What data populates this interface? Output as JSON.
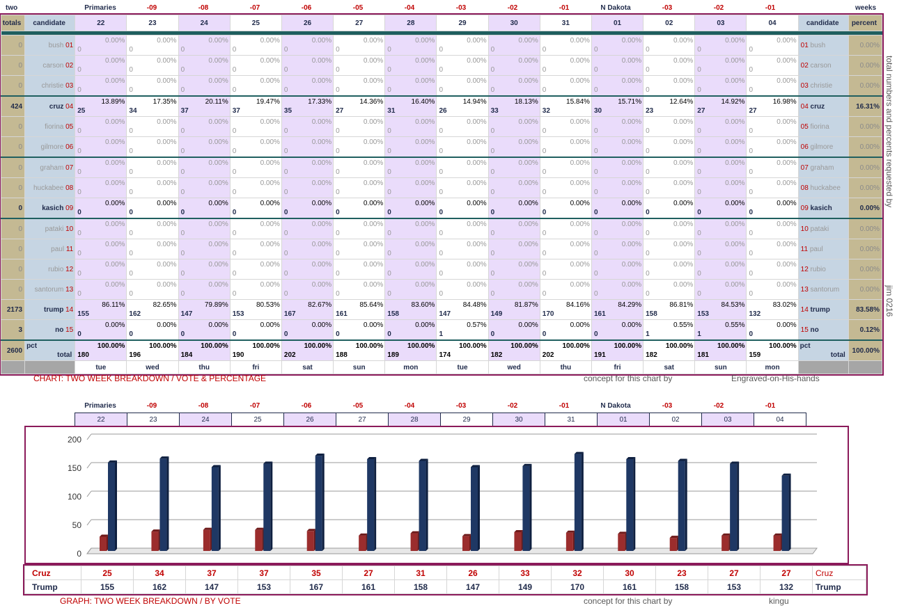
{
  "top": {
    "left_label": "two",
    "right_label": "weeks",
    "col_headers": [
      "Primaries",
      "-09",
      "-08",
      "-07",
      "-06",
      "-05",
      "-04",
      "-03",
      "-02",
      "-01",
      "N Dakota",
      "-03",
      "-02",
      "-01"
    ],
    "col_header_colors": [
      "#1f2a4a",
      "#c00000",
      "#c00000",
      "#c00000",
      "#c00000",
      "#c00000",
      "#c00000",
      "#c00000",
      "#c00000",
      "#c00000",
      "#1f2a4a",
      "#c00000",
      "#c00000",
      "#c00000"
    ]
  },
  "table": {
    "h_totals": "totals",
    "h_candidate": "candidate",
    "h_percent": "percent",
    "dates": [
      "22",
      "23",
      "24",
      "25",
      "26",
      "27",
      "28",
      "29",
      "30",
      "31",
      "01",
      "02",
      "03",
      "04"
    ],
    "days": [
      "tue",
      "wed",
      "thu",
      "fri",
      "sat",
      "sun",
      "mon",
      "tue",
      "wed",
      "thu",
      "fri",
      "sat",
      "sun",
      "mon"
    ],
    "candidates": [
      {
        "name": "bush",
        "num": "01",
        "total": "0",
        "pct": "0.00%",
        "vals": [
          "0",
          "0",
          "0",
          "0",
          "0",
          "0",
          "0",
          "0",
          "0",
          "0",
          "0",
          "0",
          "0",
          "0"
        ],
        "pcts": [
          "0.00%",
          "0.00%",
          "0.00%",
          "0.00%",
          "0.00%",
          "0.00%",
          "0.00%",
          "0.00%",
          "0.00%",
          "0.00%",
          "0.00%",
          "0.00%",
          "0.00%",
          "0.00%"
        ],
        "bold": false
      },
      {
        "name": "carson",
        "num": "02",
        "total": "0",
        "pct": "0.00%",
        "vals": [
          "0",
          "0",
          "0",
          "0",
          "0",
          "0",
          "0",
          "0",
          "0",
          "0",
          "0",
          "0",
          "0",
          "0"
        ],
        "pcts": [
          "0.00%",
          "0.00%",
          "0.00%",
          "0.00%",
          "0.00%",
          "0.00%",
          "0.00%",
          "0.00%",
          "0.00%",
          "0.00%",
          "0.00%",
          "0.00%",
          "0.00%",
          "0.00%"
        ],
        "bold": false
      },
      {
        "name": "christie",
        "num": "03",
        "total": "0",
        "pct": "0.00%",
        "vals": [
          "0",
          "0",
          "0",
          "0",
          "0",
          "0",
          "0",
          "0",
          "0",
          "0",
          "0",
          "0",
          "0",
          "0"
        ],
        "pcts": [
          "0.00%",
          "0.00%",
          "0.00%",
          "0.00%",
          "0.00%",
          "0.00%",
          "0.00%",
          "0.00%",
          "0.00%",
          "0.00%",
          "0.00%",
          "0.00%",
          "0.00%",
          "0.00%"
        ],
        "bold": false
      },
      {
        "name": "cruz",
        "num": "04",
        "total": "424",
        "pct": "16.31%",
        "vals": [
          "25",
          "34",
          "37",
          "37",
          "35",
          "27",
          "31",
          "26",
          "33",
          "32",
          "30",
          "23",
          "27",
          "27"
        ],
        "pcts": [
          "13.89%",
          "17.35%",
          "20.11%",
          "19.47%",
          "17.33%",
          "14.36%",
          "16.40%",
          "14.94%",
          "18.13%",
          "15.84%",
          "15.71%",
          "12.64%",
          "14.92%",
          "16.98%"
        ],
        "bold": true
      },
      {
        "name": "fiorina",
        "num": "05",
        "total": "0",
        "pct": "0.00%",
        "vals": [
          "0",
          "0",
          "0",
          "0",
          "0",
          "0",
          "0",
          "0",
          "0",
          "0",
          "0",
          "0",
          "0",
          "0"
        ],
        "pcts": [
          "0.00%",
          "0.00%",
          "0.00%",
          "0.00%",
          "0.00%",
          "0.00%",
          "0.00%",
          "0.00%",
          "0.00%",
          "0.00%",
          "0.00%",
          "0.00%",
          "0.00%",
          "0.00%"
        ],
        "bold": false
      },
      {
        "name": "gilmore",
        "num": "06",
        "total": "0",
        "pct": "0.00%",
        "vals": [
          "0",
          "0",
          "0",
          "0",
          "0",
          "0",
          "0",
          "0",
          "0",
          "0",
          "0",
          "0",
          "0",
          "0"
        ],
        "pcts": [
          "0.00%",
          "0.00%",
          "0.00%",
          "0.00%",
          "0.00%",
          "0.00%",
          "0.00%",
          "0.00%",
          "0.00%",
          "0.00%",
          "0.00%",
          "0.00%",
          "0.00%",
          "0.00%"
        ],
        "bold": false
      },
      {
        "name": "graham",
        "num": "07",
        "total": "0",
        "pct": "0.00%",
        "vals": [
          "0",
          "0",
          "0",
          "0",
          "0",
          "0",
          "0",
          "0",
          "0",
          "0",
          "0",
          "0",
          "0",
          "0"
        ],
        "pcts": [
          "0.00%",
          "0.00%",
          "0.00%",
          "0.00%",
          "0.00%",
          "0.00%",
          "0.00%",
          "0.00%",
          "0.00%",
          "0.00%",
          "0.00%",
          "0.00%",
          "0.00%",
          "0.00%"
        ],
        "bold": false
      },
      {
        "name": "huckabee",
        "num": "08",
        "total": "0",
        "pct": "0.00%",
        "vals": [
          "0",
          "0",
          "0",
          "0",
          "0",
          "0",
          "0",
          "0",
          "0",
          "0",
          "0",
          "0",
          "0",
          "0"
        ],
        "pcts": [
          "0.00%",
          "0.00%",
          "0.00%",
          "0.00%",
          "0.00%",
          "0.00%",
          "0.00%",
          "0.00%",
          "0.00%",
          "0.00%",
          "0.00%",
          "0.00%",
          "0.00%",
          "0.00%"
        ],
        "bold": false
      },
      {
        "name": "kasich",
        "num": "09",
        "total": "0",
        "pct": "0.00%",
        "vals": [
          "0",
          "0",
          "0",
          "0",
          "0",
          "0",
          "0",
          "0",
          "0",
          "0",
          "0",
          "0",
          "0",
          "0"
        ],
        "pcts": [
          "0.00%",
          "0.00%",
          "0.00%",
          "0.00%",
          "0.00%",
          "0.00%",
          "0.00%",
          "0.00%",
          "0.00%",
          "0.00%",
          "0.00%",
          "0.00%",
          "0.00%",
          "0.00%"
        ],
        "bold": true
      },
      {
        "name": "pataki",
        "num": "10",
        "total": "0",
        "pct": "0.00%",
        "vals": [
          "0",
          "0",
          "0",
          "0",
          "0",
          "0",
          "0",
          "0",
          "0",
          "0",
          "0",
          "0",
          "0",
          "0"
        ],
        "pcts": [
          "0.00%",
          "0.00%",
          "0.00%",
          "0.00%",
          "0.00%",
          "0.00%",
          "0.00%",
          "0.00%",
          "0.00%",
          "0.00%",
          "0.00%",
          "0.00%",
          "0.00%",
          "0.00%"
        ],
        "bold": false
      },
      {
        "name": "paul",
        "num": "11",
        "total": "0",
        "pct": "0.00%",
        "vals": [
          "0",
          "0",
          "0",
          "0",
          "0",
          "0",
          "0",
          "0",
          "0",
          "0",
          "0",
          "0",
          "0",
          "0"
        ],
        "pcts": [
          "0.00%",
          "0.00%",
          "0.00%",
          "0.00%",
          "0.00%",
          "0.00%",
          "0.00%",
          "0.00%",
          "0.00%",
          "0.00%",
          "0.00%",
          "0.00%",
          "0.00%",
          "0.00%"
        ],
        "bold": false
      },
      {
        "name": "rubio",
        "num": "12",
        "total": "0",
        "pct": "0.00%",
        "vals": [
          "0",
          "0",
          "0",
          "0",
          "0",
          "0",
          "0",
          "0",
          "0",
          "0",
          "0",
          "0",
          "0",
          "0"
        ],
        "pcts": [
          "0.00%",
          "0.00%",
          "0.00%",
          "0.00%",
          "0.00%",
          "0.00%",
          "0.00%",
          "0.00%",
          "0.00%",
          "0.00%",
          "0.00%",
          "0.00%",
          "0.00%",
          "0.00%"
        ],
        "bold": false
      },
      {
        "name": "santorum",
        "num": "13",
        "total": "0",
        "pct": "0.00%",
        "vals": [
          "0",
          "0",
          "0",
          "0",
          "0",
          "0",
          "0",
          "0",
          "0",
          "0",
          "0",
          "0",
          "0",
          "0"
        ],
        "pcts": [
          "0.00%",
          "0.00%",
          "0.00%",
          "0.00%",
          "0.00%",
          "0.00%",
          "0.00%",
          "0.00%",
          "0.00%",
          "0.00%",
          "0.00%",
          "0.00%",
          "0.00%",
          "0.00%"
        ],
        "bold": false
      },
      {
        "name": "trump",
        "num": "14",
        "total": "2173",
        "pct": "83.58%",
        "vals": [
          "155",
          "162",
          "147",
          "153",
          "167",
          "161",
          "158",
          "147",
          "149",
          "170",
          "161",
          "158",
          "153",
          "132"
        ],
        "pcts": [
          "86.11%",
          "82.65%",
          "79.89%",
          "80.53%",
          "82.67%",
          "85.64%",
          "83.60%",
          "84.48%",
          "81.87%",
          "84.16%",
          "84.29%",
          "86.81%",
          "84.53%",
          "83.02%"
        ],
        "bold": true
      },
      {
        "name": "no",
        "num": "15",
        "total": "3",
        "pct": "0.12%",
        "vals": [
          "0",
          "0",
          "0",
          "0",
          "0",
          "0",
          "0",
          "1",
          "0",
          "0",
          "0",
          "1",
          "1",
          "0"
        ],
        "pcts": [
          "0.00%",
          "0.00%",
          "0.00%",
          "0.00%",
          "0.00%",
          "0.00%",
          "0.00%",
          "0.57%",
          "0.00%",
          "0.00%",
          "0.00%",
          "0.55%",
          "0.55%",
          "0.00%"
        ],
        "bold": true
      }
    ],
    "total_row": {
      "total": "2600",
      "pct_label": "pct",
      "label": "total",
      "grand_pct": "100.00%",
      "vals": [
        "180",
        "196",
        "184",
        "190",
        "202",
        "188",
        "189",
        "174",
        "182",
        "202",
        "191",
        "182",
        "181",
        "159"
      ],
      "pcts": [
        "100.00%",
        "100.00%",
        "100.00%",
        "100.00%",
        "100.00%",
        "100.00%",
        "100.00%",
        "100.00%",
        "100.00%",
        "100.00%",
        "100.00%",
        "100.00%",
        "100.00%",
        "100.00%"
      ]
    }
  },
  "captions": {
    "chart_caption": "CHART: TWO WEEK BREAKDOWN / VOTE & PERCENTAGE",
    "concept1": "concept for this chart by",
    "author1": "Engraved-on-His-hands",
    "side_note": "total numbers and percents requested by",
    "side_author": "jim 0216",
    "graph_caption": "GRAPH: TWO WEEK BREAKDOWN / BY VOTE",
    "concept2": "concept for this chart by",
    "author2": "kingu"
  },
  "colors": {
    "cruz": "#9b2d2d",
    "trump": "#1f3864",
    "lavender": "#eadcfb",
    "blue_cell": "#c6d5e3",
    "tan_cell": "#c4b993"
  },
  "chart_data": {
    "type": "bar",
    "categories": [
      "22",
      "23",
      "24",
      "25",
      "26",
      "27",
      "28",
      "29",
      "30",
      "31",
      "01",
      "02",
      "03",
      "04"
    ],
    "series": [
      {
        "name": "Cruz",
        "values": [
          25,
          34,
          37,
          37,
          35,
          27,
          31,
          26,
          33,
          32,
          30,
          23,
          27,
          27
        ]
      },
      {
        "name": "Trump",
        "values": [
          155,
          162,
          147,
          153,
          167,
          161,
          158,
          147,
          149,
          170,
          161,
          158,
          153,
          132
        ]
      }
    ],
    "yticks": [
      "0",
      "50",
      "100",
      "150",
      "200"
    ],
    "ylim": [
      0,
      200
    ],
    "grid": true
  }
}
